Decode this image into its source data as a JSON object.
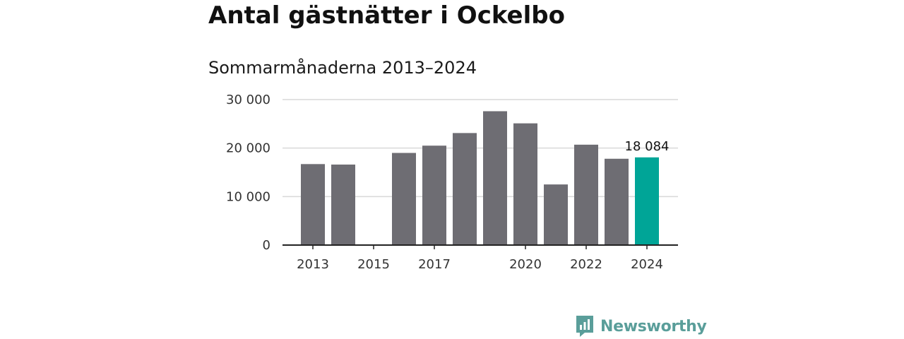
{
  "header": {
    "title": "Antal gästnätter i Ockelbo",
    "subtitle": "Sommarmånaderna 2013–2024"
  },
  "brand": {
    "name": "Newsworthy",
    "color": "#5a9e9a"
  },
  "colors": {
    "bar": "#6e6d73",
    "highlight": "#00a597",
    "grid": "#d9d9d9",
    "axis": "#222222"
  },
  "chart_data": {
    "type": "bar",
    "title": "Antal gästnätter i Ockelbo",
    "subtitle": "Sommarmånaderna 2013–2024",
    "xlabel": "",
    "ylabel": "",
    "categories": [
      "2013",
      "2014",
      "2015",
      "2016",
      "2017",
      "2018",
      "2019",
      "2020",
      "2021",
      "2022",
      "2023",
      "2024"
    ],
    "values": [
      16700,
      16600,
      null,
      19000,
      20500,
      23100,
      27600,
      25100,
      12500,
      20700,
      17800,
      18084
    ],
    "highlight_index": 11,
    "data_labels": [
      {
        "index": 11,
        "text": "18 084"
      }
    ],
    "ylim": [
      0,
      30000
    ],
    "yticks": [
      0,
      10000,
      20000,
      30000
    ],
    "ytick_labels": [
      "0",
      "10 000",
      "20 000",
      "30 000"
    ],
    "xtick_labels": [
      {
        "index": 0,
        "text": "2013"
      },
      {
        "index": 2,
        "text": "2015"
      },
      {
        "index": 4,
        "text": "2017"
      },
      {
        "index": 7,
        "text": "2020"
      },
      {
        "index": 9,
        "text": "2022"
      },
      {
        "index": 11,
        "text": "2024"
      }
    ],
    "grid": true,
    "legend": "none"
  }
}
